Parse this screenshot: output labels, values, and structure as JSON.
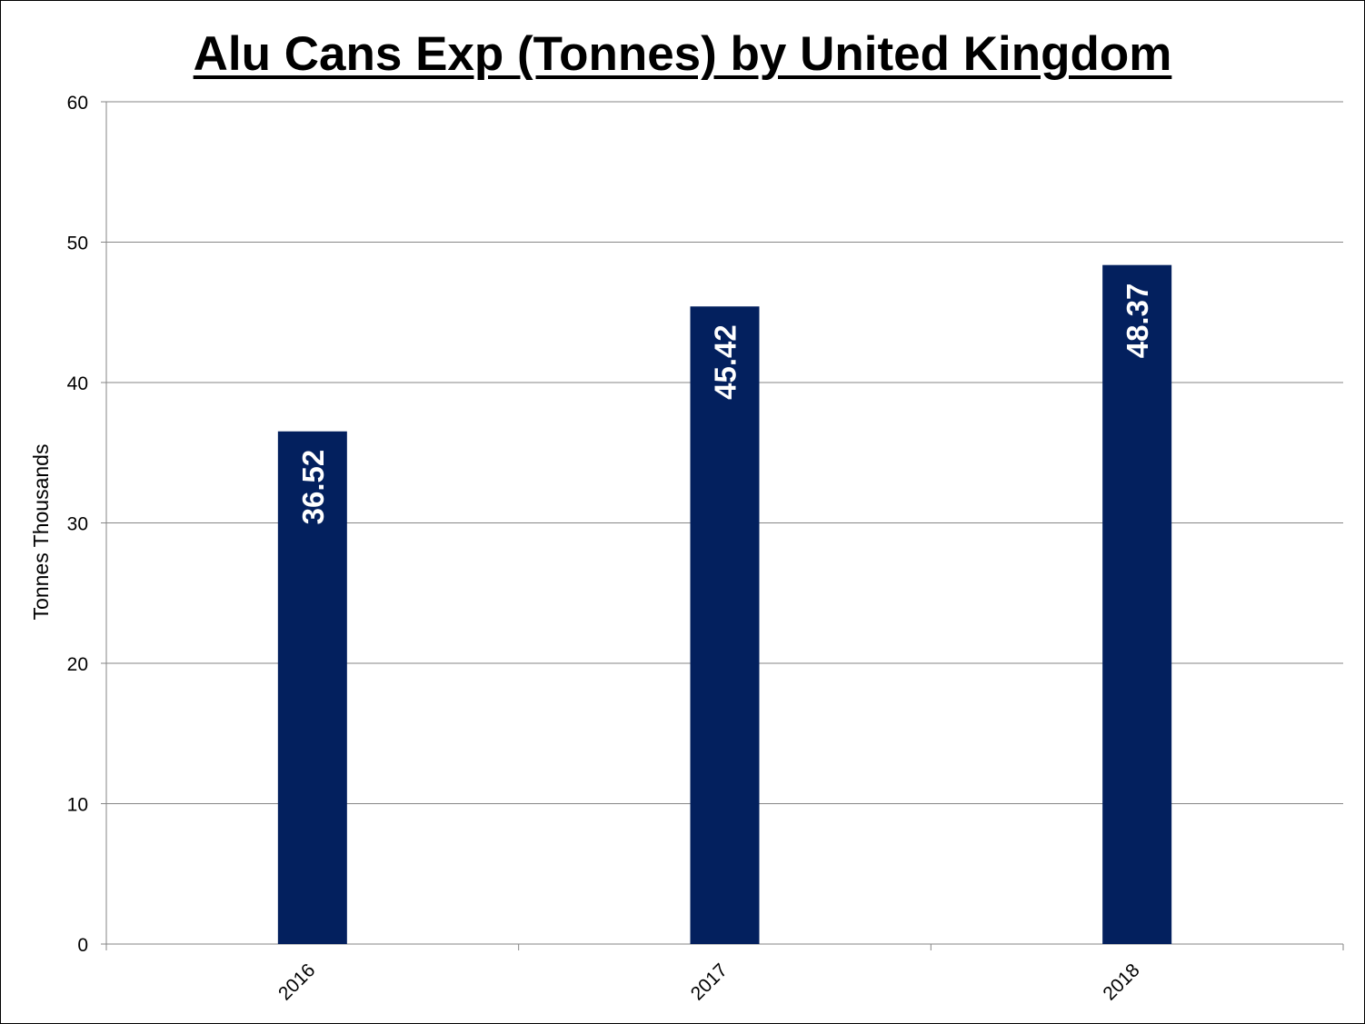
{
  "chart_data": {
    "type": "bar",
    "title": "Alu Cans Exp (Tonnes) by United Kingdom",
    "xlabel": "",
    "ylabel": "Tonnes Thousands",
    "categories": [
      "2016",
      "2017",
      "2018"
    ],
    "values": [
      36.52,
      45.42,
      48.37
    ],
    "data_labels": [
      "36.52",
      "45.42",
      "48.37"
    ],
    "ylim": [
      0,
      60
    ],
    "yticks": [
      0,
      10,
      20,
      30,
      40,
      50,
      60
    ],
    "grid": true,
    "legend": "none",
    "bar_color": "#03205E",
    "data_label_color": "#FFFFFF",
    "gridline_color": "#868686"
  }
}
